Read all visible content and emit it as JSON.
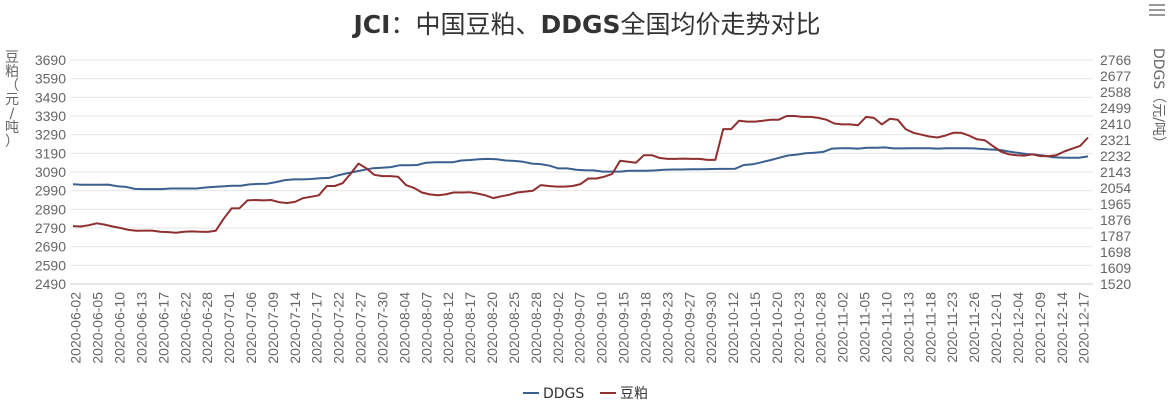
{
  "menu_icon": "hamburger-menu-icon",
  "chart_data": {
    "type": "line",
    "title": "JCI：中国豆粕、DDGS全国均价走势对比",
    "title_parts": {
      "bold_1": "JCI",
      "normal_1": "：中国豆粕、",
      "bold_2": "DDGS",
      "normal_2": "全国均价走势对比"
    },
    "left_axis": {
      "label": "豆粕（元/吨）",
      "label_chars": [
        "豆",
        "粕",
        "（",
        "元",
        "/",
        "吨",
        "）"
      ],
      "min": 2490,
      "max": 3690,
      "step": 100,
      "ticks": [
        "3690",
        "3590",
        "3490",
        "3390",
        "3290",
        "3190",
        "3090",
        "2990",
        "2890",
        "2790",
        "2690",
        "2590",
        "2490"
      ]
    },
    "right_axis": {
      "label": "DDGS（元/吨）",
      "min": 1520,
      "max": 2766,
      "ticks": [
        "2766",
        "2677",
        "2588",
        "2499",
        "2410",
        "2321",
        "2232",
        "2143",
        "2054",
        "1965",
        "1876",
        "1787",
        "1698",
        "1609",
        "1520"
      ]
    },
    "x_labels": [
      "2020-06-02",
      "2020-06-05",
      "2020-06-10",
      "2020-06-13",
      "2020-06-17",
      "2020-06-22",
      "2020-06-28",
      "2020-07-01",
      "2020-07-06",
      "2020-07-09",
      "2020-07-14",
      "2020-07-17",
      "2020-07-22",
      "2020-07-27",
      "2020-07-30",
      "2020-08-04",
      "2020-08-07",
      "2020-08-12",
      "2020-08-17",
      "2020-08-20",
      "2020-08-25",
      "2020-08-28",
      "2020-09-02",
      "2020-09-07",
      "2020-09-10",
      "2020-09-15",
      "2020-09-18",
      "2020-09-23",
      "2020-09-27",
      "2020-09-30",
      "2020-10-12",
      "2020-10-15",
      "2020-10-20",
      "2020-10-23",
      "2020-10-28",
      "2020-11-02",
      "2020-11-05",
      "2020-11-10",
      "2020-11-13",
      "2020-11-18",
      "2020-11-23",
      "2020-11-26",
      "2020-12-01",
      "2020-12-04",
      "2020-12-09",
      "2020-12-14",
      "2020-12-17"
    ],
    "grid": true,
    "legend_position": "bottom-center",
    "series": [
      {
        "name": "DDGS",
        "axis": "right",
        "color": "#3b5f8f",
        "values": [
          2075,
          2072,
          2072,
          2072,
          2073,
          2064,
          2060,
          2049,
          2048,
          2048,
          2048,
          2051,
          2051,
          2051,
          2051,
          2057,
          2060,
          2063,
          2066,
          2067,
          2074,
          2077,
          2078,
          2087,
          2098,
          2102,
          2102,
          2104,
          2108,
          2110,
          2124,
          2135,
          2145,
          2155,
          2164,
          2167,
          2170,
          2180,
          2180,
          2182,
          2195,
          2197,
          2197,
          2197,
          2207,
          2210,
          2214,
          2216,
          2214,
          2207,
          2205,
          2200,
          2190,
          2187,
          2178,
          2163,
          2163,
          2156,
          2153,
          2152,
          2145,
          2145,
          2145,
          2150,
          2150,
          2150,
          2152,
          2156,
          2157,
          2157,
          2158,
          2158,
          2159,
          2160,
          2160,
          2161,
          2182,
          2186,
          2197,
          2209,
          2222,
          2235,
          2240,
          2247,
          2250,
          2255,
          2273,
          2275,
          2275,
          2273,
          2278,
          2278,
          2280,
          2274,
          2274,
          2275,
          2275,
          2275,
          2273,
          2275,
          2275,
          2275,
          2274,
          2271,
          2268,
          2266,
          2257,
          2250,
          2243,
          2240,
          2234,
          2225,
          2223,
          2222,
          2222,
          2230
        ]
      },
      {
        "name": "豆粕",
        "axis": "left",
        "color": "#8f2f2f",
        "values": [
          2800,
          2798,
          2805,
          2815,
          2808,
          2798,
          2790,
          2780,
          2775,
          2776,
          2776,
          2770,
          2768,
          2765,
          2770,
          2772,
          2770,
          2769,
          2775,
          2840,
          2895,
          2896,
          2938,
          2940,
          2938,
          2940,
          2928,
          2924,
          2930,
          2950,
          2957,
          2965,
          3015,
          3015,
          3030,
          3080,
          3135,
          3110,
          3075,
          3068,
          3068,
          3065,
          3020,
          3005,
          2980,
          2970,
          2965,
          2970,
          2980,
          2980,
          2982,
          2975,
          2965,
          2950,
          2960,
          2968,
          2980,
          2985,
          2990,
          3020,
          3015,
          3012,
          3012,
          3015,
          3025,
          3055,
          3055,
          3065,
          3080,
          3150,
          3145,
          3140,
          3180,
          3180,
          3165,
          3160,
          3160,
          3162,
          3160,
          3160,
          3155,
          3155,
          3320,
          3320,
          3365,
          3360,
          3360,
          3365,
          3370,
          3370,
          3390,
          3390,
          3385,
          3385,
          3380,
          3370,
          3350,
          3345,
          3345,
          3340,
          3385,
          3380,
          3345,
          3375,
          3370,
          3320,
          3300,
          3290,
          3280,
          3275,
          3285,
          3300,
          3300,
          3285,
          3265,
          3260,
          3230,
          3200,
          3185,
          3180,
          3178,
          3185,
          3175,
          3175,
          3180,
          3200,
          3215,
          3230,
          3275
        ]
      }
    ]
  }
}
